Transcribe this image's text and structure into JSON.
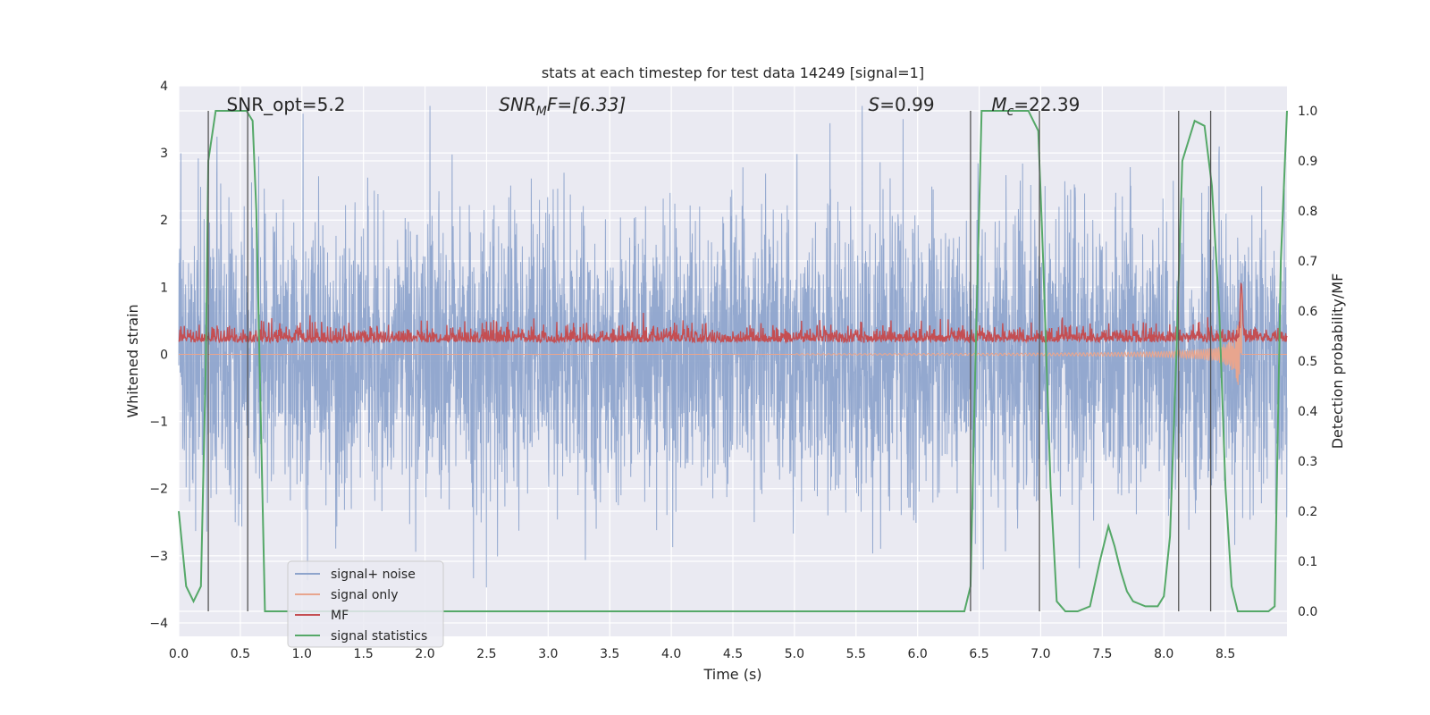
{
  "chart_data": {
    "type": "line",
    "title": "stats at each timestep for test data 14249 [signal=1]",
    "xlabel": "Time (s)",
    "ylabel": "Whitened strain",
    "y2label": "Detection probability/MF",
    "xlim": [
      0,
      9.0
    ],
    "ylim": [
      -4.2,
      4.0
    ],
    "y2lim": [
      -0.05,
      1.05
    ],
    "x_ticks": [
      0.0,
      0.5,
      1.0,
      1.5,
      2.0,
      2.5,
      3.0,
      3.5,
      4.0,
      4.5,
      5.0,
      5.5,
      6.0,
      6.5,
      7.0,
      7.5,
      8.0,
      8.5
    ],
    "x_tick_labels": [
      "0.0",
      "0.5",
      "1.0",
      "1.5",
      "2.0",
      "2.5",
      "3.0",
      "3.5",
      "4.0",
      "4.5",
      "5.0",
      "5.5",
      "6.0",
      "6.5",
      "7.0",
      "7.5",
      "8.0",
      "8.5"
    ],
    "y_ticks": [
      4,
      3,
      2,
      1,
      0,
      -1,
      -2,
      -3,
      -4
    ],
    "y_tick_labels": [
      "4",
      "3",
      "2",
      "1",
      "0",
      "−1",
      "−2",
      "−3",
      "−4"
    ],
    "y2_ticks": [
      1.0,
      0.9,
      0.8,
      0.7,
      0.6,
      0.5,
      0.4,
      0.3,
      0.2,
      0.1,
      0.0
    ],
    "y2_tick_labels": [
      "1.0",
      "0.9",
      "0.8",
      "0.7",
      "0.6",
      "0.5",
      "0.4",
      "0.3",
      "0.2",
      "0.1",
      "0.0"
    ],
    "grid": true,
    "legend_position": "lower-left",
    "annotations": [
      {
        "text": "SNR_opt=5.2",
        "x": 0.2
      },
      {
        "text": "SNR",
        "sub": "M",
        "rest": "F=[6.33]",
        "x": 2.6,
        "italic": true
      },
      {
        "text": "S",
        "rest": "=0.99",
        "x": 5.6,
        "italic": true
      },
      {
        "text": "M",
        "sub": "c",
        "rest": "=22.39",
        "x": 6.6,
        "italic": true
      }
    ],
    "series": [
      {
        "name": "signal+ noise",
        "color": "#8ea4cc",
        "axis": "left",
        "kind": "noise",
        "amplitude_range": [
          -3.6,
          3.7
        ]
      },
      {
        "name": "signal only",
        "color": "#e8a58e",
        "axis": "left",
        "kind": "chirp",
        "merger_time": 8.63,
        "peak": 1.15
      },
      {
        "name": "MF",
        "color": "#c44e52",
        "axis": "left",
        "kind": "mf",
        "baseline": 0.2,
        "spike_time": 8.63,
        "spike_peak": 1.05
      },
      {
        "name": "signal statistics",
        "color": "#55a868",
        "axis": "right",
        "x": [
          0.0,
          0.06,
          0.12,
          0.18,
          0.22,
          0.24,
          0.3,
          0.35,
          0.45,
          0.55,
          0.6,
          0.63,
          0.7,
          1.0,
          2.0,
          3.0,
          4.0,
          5.0,
          6.0,
          6.38,
          6.43,
          6.47,
          6.52,
          6.7,
          6.9,
          6.98,
          7.02,
          7.08,
          7.13,
          7.2,
          7.3,
          7.4,
          7.48,
          7.55,
          7.6,
          7.65,
          7.7,
          7.75,
          7.85,
          7.95,
          8.0,
          8.05,
          8.1,
          8.15,
          8.25,
          8.33,
          8.39,
          8.45,
          8.5,
          8.55,
          8.6,
          8.65,
          8.75,
          8.85,
          8.9,
          8.95,
          9.0
        ],
        "y": [
          0.2,
          0.05,
          0.02,
          0.05,
          0.5,
          0.9,
          1.0,
          1.0,
          1.0,
          1.0,
          0.98,
          0.8,
          0.0,
          0.0,
          0.0,
          0.0,
          0.0,
          0.0,
          0.0,
          0.0,
          0.05,
          0.5,
          1.0,
          1.0,
          1.0,
          0.96,
          0.7,
          0.25,
          0.02,
          0.0,
          0.0,
          0.01,
          0.1,
          0.17,
          0.13,
          0.08,
          0.04,
          0.02,
          0.01,
          0.01,
          0.03,
          0.15,
          0.5,
          0.9,
          0.98,
          0.97,
          0.85,
          0.6,
          0.25,
          0.05,
          0.0,
          0.0,
          0.0,
          0.0,
          0.01,
          0.7,
          1.0
        ]
      }
    ],
    "vertical_lines": [
      0.24,
      0.56,
      6.43,
      6.99,
      8.12,
      8.38
    ]
  }
}
